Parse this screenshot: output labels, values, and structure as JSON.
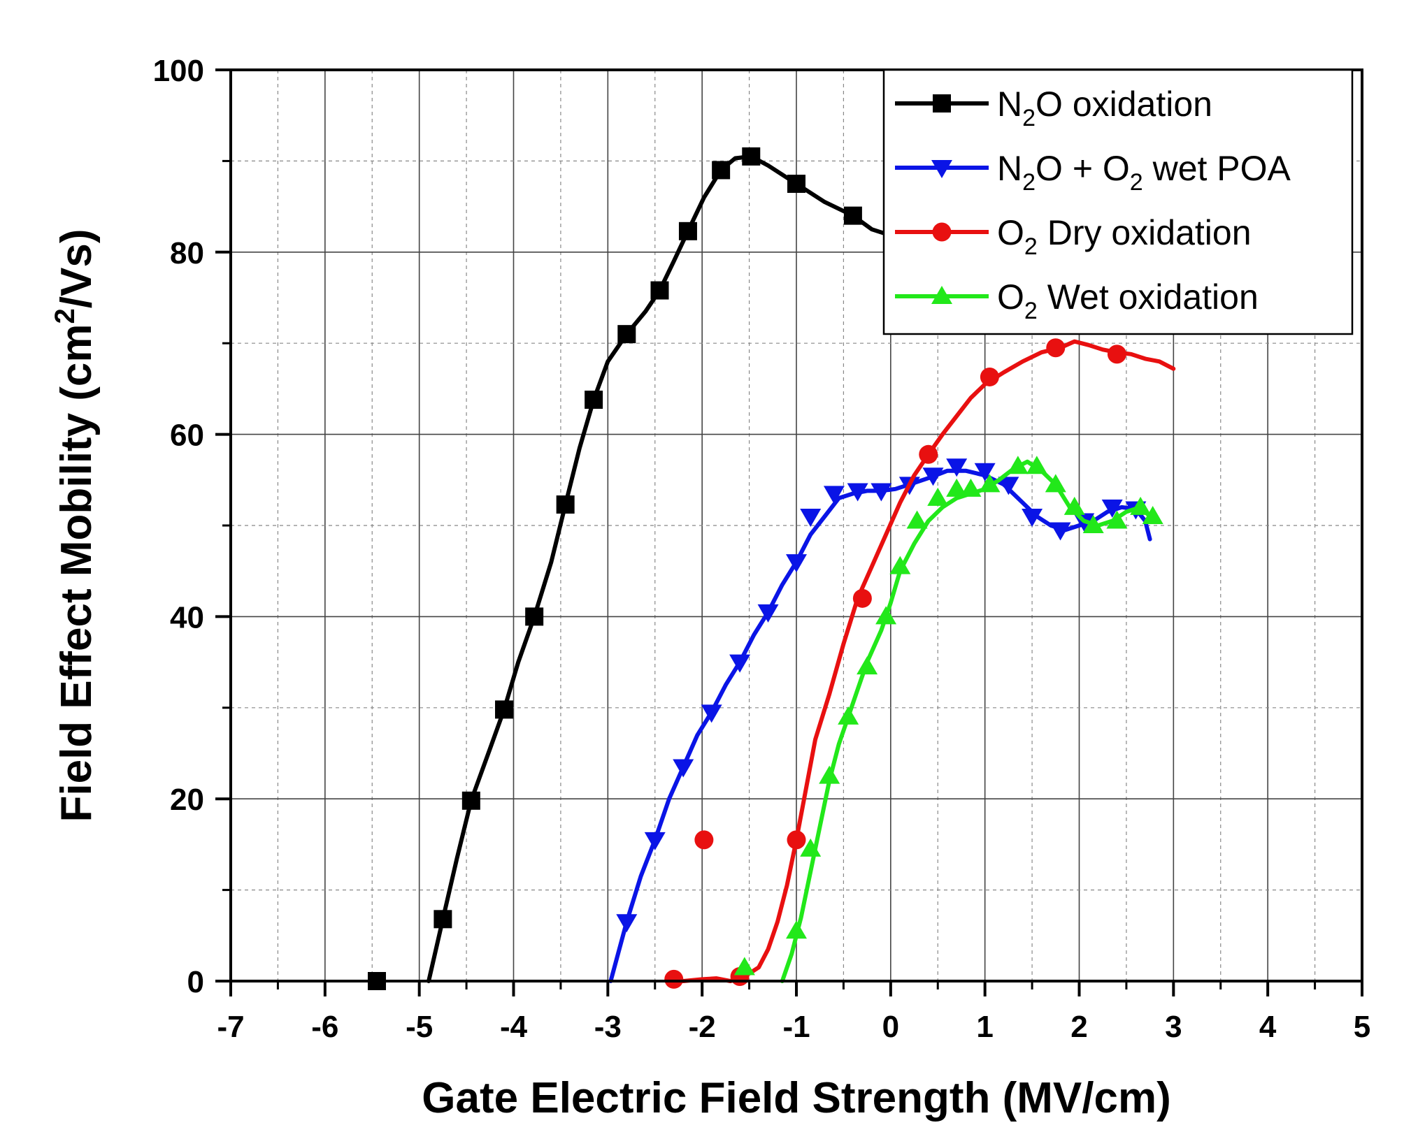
{
  "chart_data": {
    "type": "line",
    "title": "",
    "xlabel": "Gate Electric Field Strength (MV/cm)",
    "ylabel": "Field Effect Mobility (cm²/Vs)",
    "ylabel_parts": {
      "pre": "Field Effect Mobility (cm",
      "sup": "2",
      "post": "/Vs)"
    },
    "xlim": [
      -7,
      5
    ],
    "ylim": [
      0,
      100
    ],
    "xticks": [
      -7,
      -6,
      -5,
      -4,
      -3,
      -2,
      -1,
      0,
      1,
      2,
      3,
      4,
      5
    ],
    "xtick_labels": [
      "-7",
      "-6",
      "-5",
      "-4",
      "-3",
      "-2",
      "-1",
      "0",
      "1",
      "2",
      "3",
      "4",
      "5"
    ],
    "yticks": [
      0,
      20,
      40,
      60,
      80,
      100
    ],
    "ytick_labels": [
      "0",
      "20",
      "40",
      "60",
      "80",
      "100"
    ],
    "grid": true,
    "legend_position": "top-right",
    "series": [
      {
        "name": "N2O oxidation",
        "label_parts": [
          {
            "t": "N"
          },
          {
            "t": "2",
            "sub": true
          },
          {
            "t": "O oxidation"
          }
        ],
        "color": "#000000",
        "marker": "square",
        "line": [
          [
            -4.9,
            0
          ],
          [
            -4.75,
            6.8
          ],
          [
            -4.6,
            13.5
          ],
          [
            -4.45,
            19.8
          ],
          [
            -4.25,
            25.5
          ],
          [
            -4.1,
            29.8
          ],
          [
            -3.95,
            35
          ],
          [
            -3.78,
            40
          ],
          [
            -3.6,
            46
          ],
          [
            -3.45,
            52.3
          ],
          [
            -3.3,
            58.5
          ],
          [
            -3.15,
            63.8
          ],
          [
            -3.0,
            68
          ],
          [
            -2.8,
            71
          ],
          [
            -2.6,
            73.5
          ],
          [
            -2.45,
            75.8
          ],
          [
            -2.3,
            79
          ],
          [
            -2.15,
            82.3
          ],
          [
            -1.98,
            86
          ],
          [
            -1.8,
            89
          ],
          [
            -1.65,
            90.3
          ],
          [
            -1.48,
            90.5
          ],
          [
            -1.3,
            89.5
          ],
          [
            -1.0,
            87.5
          ],
          [
            -0.7,
            85.5
          ],
          [
            -0.4,
            84
          ],
          [
            -0.2,
            82.5
          ],
          [
            -0.05,
            82
          ]
        ],
        "markers": [
          [
            -5.45,
            0
          ],
          [
            -4.75,
            6.8
          ],
          [
            -4.45,
            19.8
          ],
          [
            -4.1,
            29.8
          ],
          [
            -3.78,
            40
          ],
          [
            -3.45,
            52.3
          ],
          [
            -3.15,
            63.8
          ],
          [
            -2.8,
            71
          ],
          [
            -2.45,
            75.8
          ],
          [
            -2.15,
            82.3
          ],
          [
            -1.8,
            89
          ],
          [
            -1.48,
            90.5
          ],
          [
            -1.0,
            87.5
          ],
          [
            -0.4,
            84
          ]
        ]
      },
      {
        "name": "N2O + O2 wet POA",
        "label_parts": [
          {
            "t": "N"
          },
          {
            "t": "2",
            "sub": true
          },
          {
            "t": "O + O"
          },
          {
            "t": "2",
            "sub": true
          },
          {
            "t": " wet POA"
          }
        ],
        "color": "#0a14e6",
        "marker": "triangle-down",
        "line": [
          [
            -2.97,
            0
          ],
          [
            -2.8,
            6.5
          ],
          [
            -2.65,
            11.5
          ],
          [
            -2.5,
            15.5
          ],
          [
            -2.35,
            20
          ],
          [
            -2.2,
            23.5
          ],
          [
            -2.05,
            27
          ],
          [
            -1.9,
            29.5
          ],
          [
            -1.75,
            32.5
          ],
          [
            -1.6,
            35
          ],
          [
            -1.45,
            38
          ],
          [
            -1.3,
            40.5
          ],
          [
            -1.15,
            43.5
          ],
          [
            -1.0,
            46
          ],
          [
            -0.85,
            49
          ],
          [
            -0.7,
            51
          ],
          [
            -0.55,
            53
          ],
          [
            -0.4,
            53.5
          ],
          [
            -0.25,
            53.8
          ],
          [
            -0.1,
            53.8
          ],
          [
            0.05,
            54
          ],
          [
            0.2,
            54.5
          ],
          [
            0.4,
            55.2
          ],
          [
            0.6,
            56
          ],
          [
            0.8,
            56
          ],
          [
            1.0,
            55.5
          ],
          [
            1.2,
            54.5
          ],
          [
            1.4,
            52.5
          ],
          [
            1.55,
            51
          ],
          [
            1.7,
            50
          ],
          [
            1.85,
            49.5
          ],
          [
            2.0,
            50
          ],
          [
            2.15,
            50.5
          ],
          [
            2.3,
            51.5
          ],
          [
            2.45,
            52
          ],
          [
            2.6,
            51.8
          ],
          [
            2.7,
            50.5
          ],
          [
            2.75,
            48.5
          ]
        ],
        "markers": [
          [
            -2.8,
            6.5
          ],
          [
            -2.5,
            15.5
          ],
          [
            -2.2,
            23.5
          ],
          [
            -1.9,
            29.5
          ],
          [
            -1.6,
            35
          ],
          [
            -1.3,
            40.5
          ],
          [
            -1.0,
            46
          ],
          [
            -0.85,
            51
          ],
          [
            -0.6,
            53.5
          ],
          [
            -0.35,
            53.8
          ],
          [
            -0.1,
            53.8
          ],
          [
            0.2,
            54.5
          ],
          [
            0.45,
            55.5
          ],
          [
            0.7,
            56.5
          ],
          [
            1.0,
            56
          ],
          [
            1.25,
            54.5
          ],
          [
            1.5,
            51
          ],
          [
            1.8,
            49.5
          ],
          [
            2.05,
            50.5
          ],
          [
            2.35,
            52
          ],
          [
            2.6,
            51.8
          ]
        ]
      },
      {
        "name": "O2 Dry oxidation",
        "label_parts": [
          {
            "t": "O"
          },
          {
            "t": "2",
            "sub": true
          },
          {
            "t": " Dry oxidation"
          }
        ],
        "color": "#e81010",
        "marker": "circle",
        "line": [
          [
            -2.35,
            0.5
          ],
          [
            -2.2,
            0
          ],
          [
            -2.0,
            0.2
          ],
          [
            -1.85,
            0.3
          ],
          [
            -1.7,
            0
          ],
          [
            -1.55,
            0.5
          ],
          [
            -1.4,
            1.5
          ],
          [
            -1.3,
            3.5
          ],
          [
            -1.2,
            6.5
          ],
          [
            -1.1,
            10.5
          ],
          [
            -1.0,
            15.5
          ],
          [
            -0.9,
            21
          ],
          [
            -0.8,
            26.5
          ],
          [
            -0.65,
            31.5
          ],
          [
            -0.5,
            37
          ],
          [
            -0.35,
            42
          ],
          [
            -0.2,
            45.5
          ],
          [
            -0.05,
            49
          ],
          [
            0.1,
            52.5
          ],
          [
            0.25,
            55.5
          ],
          [
            0.4,
            57.8
          ],
          [
            0.55,
            60
          ],
          [
            0.7,
            62
          ],
          [
            0.85,
            64
          ],
          [
            1.0,
            65.5
          ],
          [
            1.2,
            66.8
          ],
          [
            1.4,
            68
          ],
          [
            1.6,
            69
          ],
          [
            1.8,
            69.5
          ],
          [
            1.95,
            70.2
          ],
          [
            2.1,
            69.8
          ],
          [
            2.25,
            69.3
          ],
          [
            2.4,
            69
          ],
          [
            2.55,
            68.8
          ],
          [
            2.7,
            68.3
          ],
          [
            2.85,
            68
          ],
          [
            3.0,
            67.2
          ]
        ],
        "markers": [
          [
            -2.3,
            0.2
          ],
          [
            -1.98,
            15.5
          ],
          [
            -1.6,
            0.5
          ],
          [
            -1.0,
            15.5
          ],
          [
            -0.3,
            42
          ],
          [
            0.4,
            57.8
          ],
          [
            1.05,
            66.3
          ],
          [
            1.75,
            69.5
          ],
          [
            2.4,
            68.8
          ]
        ]
      },
      {
        "name": "O2 Wet oxidation",
        "label_parts": [
          {
            "t": "O"
          },
          {
            "t": "2",
            "sub": true
          },
          {
            "t": " Wet oxidation"
          }
        ],
        "color": "#22e81a",
        "marker": "triangle-up",
        "line": [
          [
            -1.15,
            0
          ],
          [
            -1.05,
            3
          ],
          [
            -0.95,
            7
          ],
          [
            -0.85,
            12
          ],
          [
            -0.75,
            17
          ],
          [
            -0.65,
            22
          ],
          [
            -0.55,
            26
          ],
          [
            -0.45,
            29
          ],
          [
            -0.35,
            32
          ],
          [
            -0.25,
            35
          ],
          [
            -0.1,
            38.5
          ],
          [
            0.0,
            41.5
          ],
          [
            0.1,
            45
          ],
          [
            0.25,
            48
          ],
          [
            0.4,
            50.5
          ],
          [
            0.55,
            52
          ],
          [
            0.7,
            53
          ],
          [
            0.85,
            53.5
          ],
          [
            1.0,
            54
          ],
          [
            1.15,
            55
          ],
          [
            1.3,
            56.2
          ],
          [
            1.45,
            57
          ],
          [
            1.6,
            56
          ],
          [
            1.75,
            54.5
          ],
          [
            1.9,
            52
          ],
          [
            2.05,
            50.5
          ],
          [
            2.2,
            50
          ],
          [
            2.35,
            50.5
          ],
          [
            2.5,
            51.5
          ],
          [
            2.65,
            52
          ],
          [
            2.75,
            51
          ]
        ],
        "markers": [
          [
            -1.55,
            1.5
          ],
          [
            -1.0,
            5.5
          ],
          [
            -0.85,
            14.5
          ],
          [
            -0.65,
            22.5
          ],
          [
            -0.45,
            29
          ],
          [
            -0.25,
            34.5
          ],
          [
            -0.05,
            40
          ],
          [
            0.1,
            45.5
          ],
          [
            0.28,
            50.5
          ],
          [
            0.5,
            53
          ],
          [
            0.7,
            54
          ],
          [
            0.85,
            54
          ],
          [
            1.05,
            54.5
          ],
          [
            1.35,
            56.5
          ],
          [
            1.55,
            56.5
          ],
          [
            1.75,
            54.5
          ],
          [
            1.95,
            52
          ],
          [
            2.15,
            50
          ],
          [
            2.4,
            50.5
          ],
          [
            2.65,
            52
          ],
          [
            2.78,
            51
          ]
        ]
      }
    ]
  }
}
